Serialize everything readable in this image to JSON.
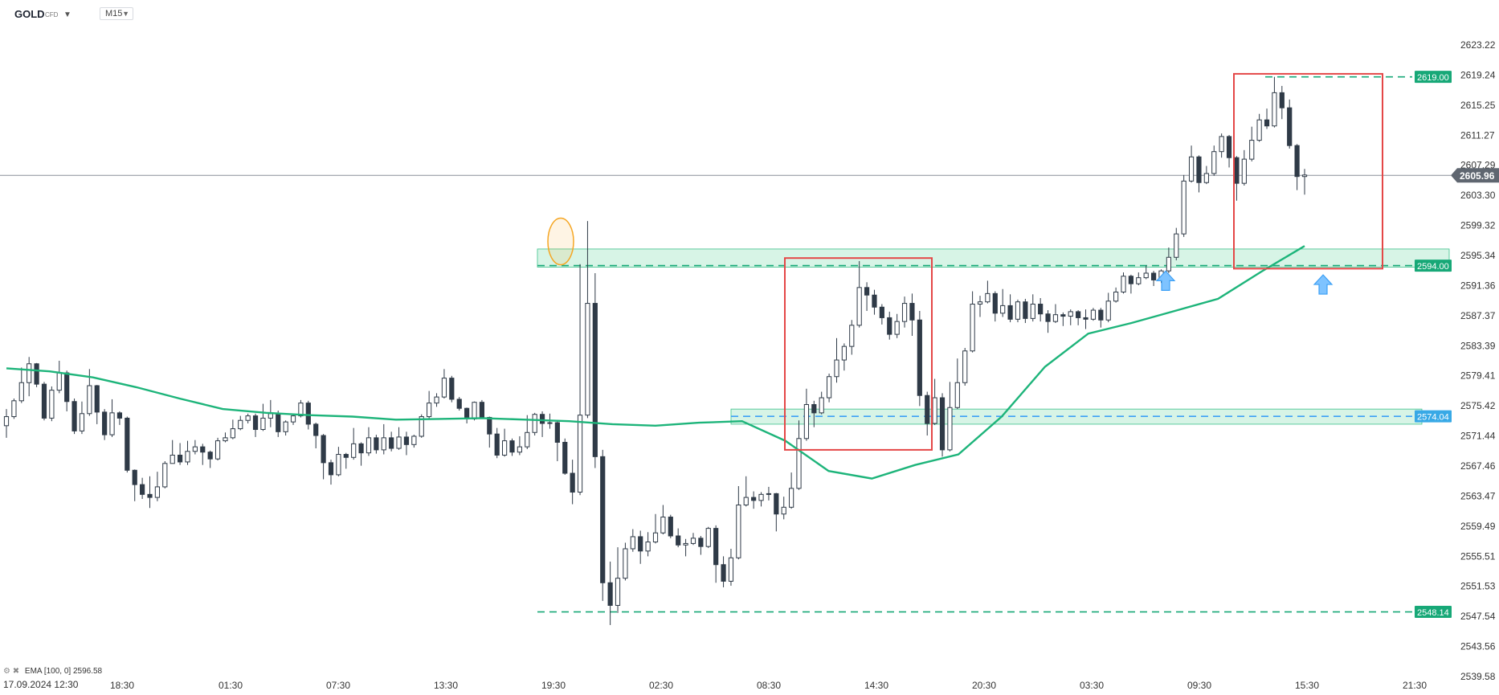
{
  "header": {
    "symbol": "GOLD",
    "symbol_sub": "CFD",
    "timeframe": "M15"
  },
  "legend": {
    "ema_label": "EMA",
    "ema_params": "[100, 0]",
    "ema_value": "2596.58"
  },
  "date_label": "17.09.2024  12:30",
  "current_price": "2605.96",
  "colors": {
    "candle": "#2f3a47",
    "ema": "#1db47a",
    "zone_fill": "#c9f0dd",
    "zone_edge": "#3cc18b",
    "red_box": "#e44747",
    "orange": "#f5a623",
    "blue": "#3da0f5",
    "green_tag": "#17a877"
  },
  "chart_data": {
    "type": "candlestick",
    "ylim": [
      2538.0,
      2626.0
    ],
    "y_ticks": [
      "2623.22",
      "2619.24",
      "2615.25",
      "2611.27",
      "2607.29",
      "2603.30",
      "2599.32",
      "2595.34",
      "2591.36",
      "2587.37",
      "2583.39",
      "2579.41",
      "2575.42",
      "2571.44",
      "2567.46",
      "2563.47",
      "2559.49",
      "2555.51",
      "2551.53",
      "2547.54",
      "2543.56",
      "2539.58"
    ],
    "x_ticks": [
      "18:30",
      "01:30",
      "07:30",
      "13:30",
      "19:30",
      "02:30",
      "08:30",
      "14:30",
      "20:30",
      "03:30",
      "09:30",
      "15:30",
      "21:30"
    ],
    "levels": [
      {
        "label": "2619.00",
        "value": 2619.0,
        "color": "green"
      },
      {
        "label": "2594.00",
        "value": 2594.0,
        "color": "green"
      },
      {
        "label": "2574.04",
        "value": 2574.04,
        "color": "blue"
      },
      {
        "label": "2548.14",
        "value": 2548.14,
        "color": "green"
      }
    ],
    "zones": [
      {
        "y": [
          2593.8,
          2596.2
        ]
      },
      {
        "y": [
          2573.0,
          2575.0
        ]
      }
    ],
    "boxes": [
      {
        "y": [
          2569.6,
          2595.0
        ]
      },
      {
        "y": [
          2593.6,
          2619.4
        ]
      }
    ],
    "ema_series": [
      2580.4,
      2580.0,
      2579.2,
      2577.9,
      2576.4,
      2575.0,
      2574.5,
      2574.2,
      2574.0,
      2573.6,
      2573.7,
      2573.8,
      2573.6,
      2573.4,
      2573.0,
      2572.8,
      2573.2,
      2573.4,
      2570.8,
      2566.8,
      2565.8,
      2567.6,
      2569.0,
      2574.0,
      2580.6,
      2585.0,
      2586.4,
      2588.0,
      2589.6,
      2593.2,
      2596.6
    ],
    "candles": [
      [
        2572.8,
        2574.0,
        2571.2,
        2575.0
      ],
      [
        2574.0,
        2576.1,
        2573.7,
        2576.4
      ],
      [
        2576.1,
        2578.5,
        2575.8,
        2580.5
      ],
      [
        2578.5,
        2581.0,
        2576.7,
        2581.9
      ],
      [
        2581.0,
        2578.3,
        2577.9,
        2581.1
      ],
      [
        2578.3,
        2573.8,
        2573.5,
        2578.6
      ],
      [
        2573.8,
        2577.5,
        2573.4,
        2578.0
      ],
      [
        2577.5,
        2579.8,
        2577.1,
        2581.4
      ],
      [
        2579.8,
        2576.0,
        2574.7,
        2580.1
      ],
      [
        2576.0,
        2572.1,
        2571.7,
        2576.4
      ],
      [
        2572.1,
        2574.4,
        2571.7,
        2576.0
      ],
      [
        2574.4,
        2578.1,
        2574.1,
        2580.3
      ],
      [
        2578.1,
        2574.6,
        2573.0,
        2578.2
      ],
      [
        2574.6,
        2571.6,
        2570.9,
        2575.0
      ],
      [
        2571.6,
        2574.5,
        2571.3,
        2576.3
      ],
      [
        2574.5,
        2573.8,
        2572.9,
        2574.7
      ],
      [
        2573.8,
        2566.9,
        2566.6,
        2574.0
      ],
      [
        2566.9,
        2565.0,
        2562.8,
        2567.0
      ],
      [
        2565.0,
        2563.7,
        2563.1,
        2565.9
      ],
      [
        2563.7,
        2563.3,
        2561.9,
        2566.1
      ],
      [
        2563.3,
        2564.7,
        2562.8,
        2566.7
      ],
      [
        2564.7,
        2567.8,
        2564.5,
        2568.1
      ],
      [
        2567.8,
        2568.9,
        2568.5,
        2570.9
      ],
      [
        2568.9,
        2568.0,
        2567.6,
        2570.5
      ],
      [
        2568.0,
        2569.4,
        2567.6,
        2570.8
      ],
      [
        2569.4,
        2570.0,
        2569.0,
        2570.9
      ],
      [
        2570.0,
        2569.3,
        2567.6,
        2570.4
      ],
      [
        2569.3,
        2568.4,
        2567.2,
        2569.5
      ],
      [
        2568.4,
        2570.8,
        2568.2,
        2571.2
      ],
      [
        2570.8,
        2571.2,
        2570.6,
        2571.9
      ],
      [
        2571.2,
        2572.4,
        2571.0,
        2573.6
      ],
      [
        2572.4,
        2573.5,
        2572.2,
        2574.1
      ],
      [
        2573.5,
        2574.1,
        2573.1,
        2574.4
      ],
      [
        2574.1,
        2572.3,
        2571.3,
        2574.4
      ],
      [
        2572.3,
        2573.8,
        2572.1,
        2575.7
      ],
      [
        2573.8,
        2574.4,
        2572.6,
        2576.2
      ],
      [
        2574.4,
        2572.0,
        2571.3,
        2574.8
      ],
      [
        2572.0,
        2573.3,
        2571.5,
        2573.5
      ],
      [
        2573.3,
        2574.1,
        2572.9,
        2574.3
      ],
      [
        2574.1,
        2575.8,
        2573.9,
        2576.2
      ],
      [
        2575.8,
        2573.0,
        2572.3,
        2576.1
      ],
      [
        2573.0,
        2571.5,
        2569.8,
        2573.2
      ],
      [
        2571.5,
        2567.9,
        2565.7,
        2571.7
      ],
      [
        2567.9,
        2566.3,
        2565.0,
        2568.3
      ],
      [
        2566.3,
        2569.0,
        2566.1,
        2570.0
      ],
      [
        2569.0,
        2568.6,
        2567.1,
        2569.2
      ],
      [
        2568.6,
        2570.4,
        2568.3,
        2572.5
      ],
      [
        2570.4,
        2569.2,
        2567.5,
        2570.6
      ],
      [
        2569.2,
        2571.2,
        2568.8,
        2572.6
      ],
      [
        2571.2,
        2569.6,
        2569.1,
        2571.6
      ],
      [
        2569.6,
        2571.2,
        2569.0,
        2573.0
      ],
      [
        2571.2,
        2569.8,
        2569.4,
        2572.0
      ],
      [
        2569.8,
        2571.3,
        2569.6,
        2572.6
      ],
      [
        2571.3,
        2570.3,
        2568.9,
        2572.0
      ],
      [
        2570.3,
        2571.4,
        2569.9,
        2571.6
      ],
      [
        2571.4,
        2574.0,
        2571.2,
        2574.3
      ],
      [
        2574.0,
        2575.8,
        2573.6,
        2577.4
      ],
      [
        2575.8,
        2576.6,
        2575.3,
        2577.1
      ],
      [
        2576.6,
        2579.1,
        2576.4,
        2580.3
      ],
      [
        2579.1,
        2576.3,
        2575.9,
        2579.4
      ],
      [
        2576.3,
        2575.1,
        2574.8,
        2576.6
      ],
      [
        2575.1,
        2573.7,
        2573.1,
        2575.2
      ],
      [
        2573.7,
        2575.9,
        2573.5,
        2576.0
      ],
      [
        2575.9,
        2573.9,
        2573.7,
        2576.2
      ],
      [
        2573.9,
        2571.7,
        2569.9,
        2574.0
      ],
      [
        2571.7,
        2568.9,
        2568.5,
        2572.5
      ],
      [
        2568.9,
        2570.8,
        2568.7,
        2572.4
      ],
      [
        2570.8,
        2569.3,
        2568.8,
        2571.1
      ],
      [
        2569.3,
        2570.0,
        2568.9,
        2571.4
      ],
      [
        2570.0,
        2571.9,
        2569.7,
        2574.2
      ],
      [
        2571.9,
        2574.3,
        2571.5,
        2574.5
      ],
      [
        2574.3,
        2573.1,
        2571.3,
        2574.7
      ],
      [
        2573.1,
        2573.2,
        2572.4,
        2574.4
      ],
      [
        2573.2,
        2570.6,
        2568.1,
        2573.4
      ],
      [
        2570.6,
        2566.5,
        2566.3,
        2571.1
      ],
      [
        2566.5,
        2564.0,
        2562.4,
        2568.3
      ],
      [
        2564.0,
        2574.2,
        2563.6,
        2594.2
      ],
      [
        2574.2,
        2589.0,
        2573.8,
        2599.9
      ],
      [
        2589.0,
        2568.7,
        2567.2,
        2593.0
      ],
      [
        2568.7,
        2552.0,
        2549.6,
        2569.6
      ],
      [
        2552.0,
        2549.0,
        2546.4,
        2554.8
      ],
      [
        2549.0,
        2552.6,
        2548.0,
        2556.7
      ],
      [
        2552.6,
        2556.5,
        2552.3,
        2557.3
      ],
      [
        2556.5,
        2558.1,
        2556.1,
        2559.1
      ],
      [
        2558.1,
        2556.2,
        2554.5,
        2558.9
      ],
      [
        2556.2,
        2557.4,
        2555.5,
        2558.7
      ],
      [
        2557.4,
        2558.6,
        2557.2,
        2561.1
      ],
      [
        2558.6,
        2560.7,
        2558.4,
        2562.3
      ],
      [
        2560.7,
        2558.2,
        2557.9,
        2561.0
      ],
      [
        2558.2,
        2557.0,
        2556.7,
        2559.2
      ],
      [
        2557.0,
        2557.2,
        2555.5,
        2557.8
      ],
      [
        2557.2,
        2557.9,
        2557.0,
        2558.6
      ],
      [
        2557.9,
        2556.8,
        2555.7,
        2558.2
      ],
      [
        2556.8,
        2559.2,
        2556.6,
        2559.4
      ],
      [
        2559.2,
        2554.4,
        2552.0,
        2559.6
      ],
      [
        2554.4,
        2552.2,
        2551.4,
        2555.5
      ],
      [
        2552.2,
        2555.3,
        2551.6,
        2556.5
      ],
      [
        2555.3,
        2562.3,
        2555.1,
        2564.8
      ],
      [
        2562.3,
        2563.3,
        2562.1,
        2566.1
      ],
      [
        2563.3,
        2562.9,
        2561.8,
        2564.1
      ],
      [
        2562.9,
        2563.7,
        2562.1,
        2564.0
      ],
      [
        2563.7,
        2563.8,
        2562.9,
        2564.7
      ],
      [
        2563.8,
        2561.1,
        2558.8,
        2563.9
      ],
      [
        2561.1,
        2562.0,
        2560.4,
        2563.4
      ],
      [
        2562.0,
        2564.5,
        2561.8,
        2566.6
      ],
      [
        2564.5,
        2571.1,
        2564.3,
        2573.5
      ],
      [
        2571.1,
        2575.6,
        2570.8,
        2577.7
      ],
      [
        2575.6,
        2574.5,
        2572.6,
        2576.1
      ],
      [
        2574.5,
        2576.5,
        2574.3,
        2577.3
      ],
      [
        2576.5,
        2579.3,
        2575.9,
        2579.7
      ],
      [
        2579.3,
        2581.5,
        2578.5,
        2584.4
      ],
      [
        2581.5,
        2583.3,
        2580.1,
        2583.7
      ],
      [
        2583.3,
        2586.1,
        2582.2,
        2586.8
      ],
      [
        2586.1,
        2591.1,
        2585.8,
        2594.6
      ],
      [
        2591.1,
        2590.1,
        2588.0,
        2591.8
      ],
      [
        2590.1,
        2588.5,
        2587.5,
        2590.8
      ],
      [
        2588.5,
        2587.1,
        2586.2,
        2588.9
      ],
      [
        2587.1,
        2584.9,
        2584.2,
        2587.9
      ],
      [
        2584.9,
        2586.6,
        2584.4,
        2587.6
      ],
      [
        2586.6,
        2589.0,
        2585.8,
        2589.9
      ],
      [
        2589.0,
        2586.8,
        2584.7,
        2590.3
      ],
      [
        2586.8,
        2576.8,
        2575.4,
        2588.0
      ],
      [
        2576.8,
        2573.1,
        2571.5,
        2577.3
      ],
      [
        2573.1,
        2576.5,
        2572.9,
        2579.0
      ],
      [
        2576.5,
        2569.6,
        2568.7,
        2577.1
      ],
      [
        2569.6,
        2575.2,
        2569.4,
        2578.6
      ],
      [
        2575.2,
        2578.5,
        2575.0,
        2581.7
      ],
      [
        2578.5,
        2582.7,
        2578.1,
        2583.1
      ],
      [
        2582.7,
        2588.9,
        2582.5,
        2590.6
      ],
      [
        2588.9,
        2589.2,
        2587.2,
        2590.0
      ],
      [
        2589.2,
        2590.3,
        2589.0,
        2592.0
      ],
      [
        2590.3,
        2587.7,
        2586.6,
        2590.6
      ],
      [
        2587.7,
        2588.7,
        2587.2,
        2590.9
      ],
      [
        2588.7,
        2586.9,
        2586.5,
        2590.2
      ],
      [
        2586.9,
        2589.2,
        2586.5,
        2589.5
      ],
      [
        2589.2,
        2587.0,
        2586.4,
        2589.6
      ],
      [
        2587.0,
        2588.9,
        2586.6,
        2590.2
      ],
      [
        2588.9,
        2587.6,
        2586.6,
        2589.7
      ],
      [
        2587.6,
        2586.6,
        2585.1,
        2588.1
      ],
      [
        2586.6,
        2587.5,
        2586.4,
        2588.9
      ],
      [
        2587.5,
        2587.3,
        2586.0,
        2587.8
      ],
      [
        2587.3,
        2587.9,
        2586.1,
        2588.2
      ],
      [
        2587.9,
        2587.1,
        2586.1,
        2588.1
      ],
      [
        2587.1,
        2586.9,
        2585.6,
        2588.2
      ],
      [
        2586.9,
        2588.1,
        2586.7,
        2588.4
      ],
      [
        2588.1,
        2586.8,
        2585.8,
        2588.4
      ],
      [
        2586.8,
        2589.3,
        2586.5,
        2590.4
      ],
      [
        2589.3,
        2590.5,
        2589.1,
        2591.1
      ],
      [
        2590.5,
        2592.6,
        2590.3,
        2593.1
      ],
      [
        2592.6,
        2591.6,
        2590.3,
        2592.8
      ],
      [
        2591.6,
        2592.4,
        2591.4,
        2593.1
      ],
      [
        2592.4,
        2593.0,
        2592.2,
        2594.0
      ],
      [
        2593.0,
        2592.1,
        2591.3,
        2593.3
      ],
      [
        2592.1,
        2593.3,
        2591.7,
        2593.5
      ],
      [
        2593.3,
        2595.1,
        2593.0,
        2596.4
      ],
      [
        2595.1,
        2598.2,
        2594.7,
        2599.0
      ],
      [
        2598.2,
        2605.2,
        2597.8,
        2606.0
      ],
      [
        2605.2,
        2608.4,
        2605.0,
        2609.9
      ],
      [
        2608.4,
        2605.0,
        2603.7,
        2608.6
      ],
      [
        2605.0,
        2606.2,
        2604.8,
        2607.2
      ],
      [
        2606.2,
        2609.1,
        2605.9,
        2609.9
      ],
      [
        2609.1,
        2611.1,
        2608.3,
        2611.5
      ],
      [
        2611.1,
        2608.3,
        2607.0,
        2611.3
      ],
      [
        2608.3,
        2604.9,
        2602.6,
        2608.5
      ],
      [
        2604.9,
        2608.1,
        2604.6,
        2609.3
      ],
      [
        2608.1,
        2610.6,
        2607.8,
        2612.4
      ],
      [
        2610.6,
        2613.3,
        2610.4,
        2614.1
      ],
      [
        2613.3,
        2612.5,
        2612.1,
        2614.8
      ],
      [
        2612.5,
        2616.9,
        2612.3,
        2619.0
      ],
      [
        2616.9,
        2614.9,
        2613.4,
        2617.8
      ],
      [
        2614.9,
        2609.9,
        2609.5,
        2616.0
      ],
      [
        2609.9,
        2605.8,
        2604.0,
        2610.1
      ],
      [
        2605.8,
        2606.0,
        2603.4,
        2606.8
      ]
    ]
  }
}
